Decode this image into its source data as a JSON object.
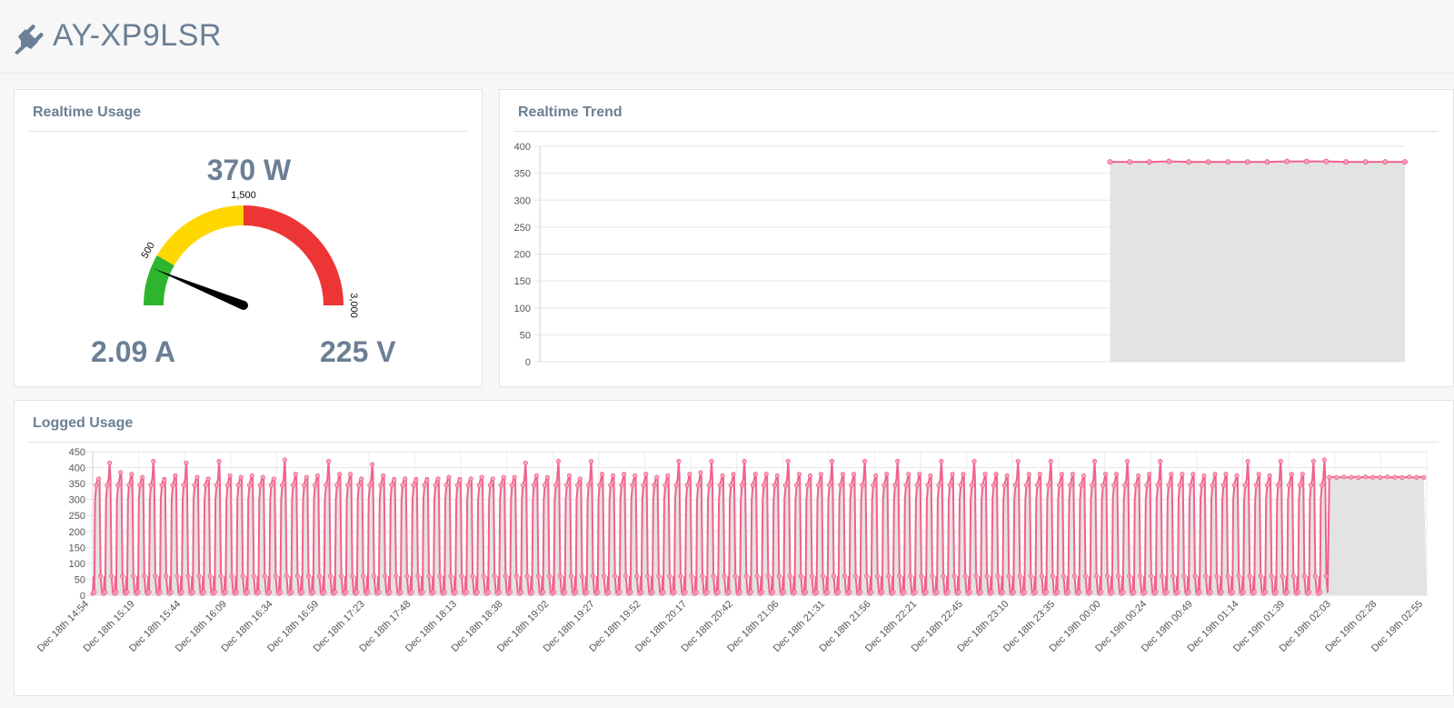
{
  "device": {
    "name": "AY-XP9LSR",
    "icon": "plug-icon"
  },
  "usage_panel": {
    "title": "Realtime Usage",
    "power": "370 W",
    "current": "2.09 A",
    "voltage": "225 V",
    "gauge": {
      "min": 0,
      "max": 3000,
      "value": 370,
      "bands": [
        {
          "from": 0,
          "to": 500,
          "color": "#2db52d"
        },
        {
          "from": 500,
          "to": 1500,
          "color": "#ffd700"
        },
        {
          "from": 1500,
          "to": 3000,
          "color": "#ee3535"
        }
      ],
      "tick_labels": [
        "500",
        "1,500",
        "3,000"
      ],
      "tick_values": [
        500,
        1500,
        3000
      ]
    }
  },
  "trend_panel": {
    "title": "Realtime Trend"
  },
  "logged_panel": {
    "title": "Logged Usage"
  },
  "colors": {
    "line": "#f2628a",
    "fill": "#e1e1e1",
    "title": "#6b7f95"
  },
  "chart_data": [
    {
      "type": "area",
      "title": "",
      "xlabel": "",
      "ylabel": "",
      "ylim": [
        0,
        400
      ],
      "yticks": [
        0,
        50,
        100,
        150,
        200,
        250,
        300,
        350,
        400
      ],
      "x_window_points": 45,
      "series": [
        {
          "values": [
            371,
            371,
            371,
            372,
            371,
            371,
            371,
            371,
            371,
            372,
            372,
            372,
            371,
            371,
            371,
            371
          ]
        }
      ]
    },
    {
      "type": "area",
      "title": "",
      "xlabel": "",
      "ylabel": "",
      "ylim": [
        0,
        450
      ],
      "yticks": [
        0,
        50,
        100,
        150,
        200,
        250,
        300,
        350,
        400,
        450
      ],
      "categories": [
        "Dec 18th 14:54",
        "Dec 18th 15:19",
        "Dec 18th 15:44",
        "Dec 18th 16:09",
        "Dec 18th 16:34",
        "Dec 18th 16:59",
        "Dec 18th 17:23",
        "Dec 18th 17:48",
        "Dec 18th 18:13",
        "Dec 18th 18:38",
        "Dec 18th 19:02",
        "Dec 18th 19:27",
        "Dec 18th 19:52",
        "Dec 18th 20:17",
        "Dec 18th 20:42",
        "Dec 18th 21:06",
        "Dec 18th 21:31",
        "Dec 18th 21:56",
        "Dec 18th 22:21",
        "Dec 18th 22:45",
        "Dec 18th 23:10",
        "Dec 18th 23:35",
        "Dec 19th 00:00",
        "Dec 19th 00:24",
        "Dec 19th 00:49",
        "Dec 19th 01:14",
        "Dec 19th 01:39",
        "Dec 19th 02:03",
        "Dec 19th 02:28",
        "Dec 19th 02:55"
      ],
      "cycle_peaks": [
        365,
        415,
        385,
        380,
        370,
        420,
        360,
        375,
        415,
        370,
        365,
        420,
        375,
        370,
        375,
        370,
        365,
        425,
        380,
        370,
        375,
        420,
        380,
        380,
        365,
        410,
        375,
        360,
        365,
        360,
        360,
        365,
        370,
        360,
        365,
        370,
        365,
        370,
        370,
        415,
        375,
        370,
        420,
        375,
        365,
        420,
        380,
        375,
        380,
        375,
        380,
        370,
        375,
        420,
        380,
        385,
        420,
        375,
        380,
        420,
        380,
        380,
        375,
        420,
        380,
        375,
        380,
        420,
        380,
        380,
        420,
        375,
        380,
        420,
        380,
        380,
        375,
        420,
        380,
        380,
        420,
        380,
        380,
        375,
        420,
        380,
        380,
        420,
        380,
        380,
        375,
        420,
        380,
        380,
        420,
        375,
        380,
        420,
        380,
        380,
        380,
        375,
        380,
        380,
        375,
        420,
        380,
        375,
        420,
        380,
        380,
        420,
        425
      ],
      "steady_value": 370
    }
  ]
}
